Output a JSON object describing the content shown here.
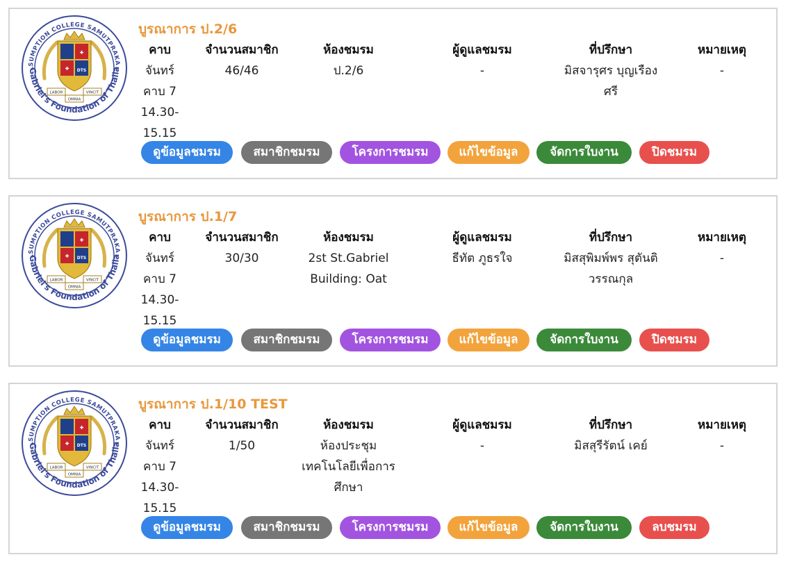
{
  "school": {
    "seal_top_text": "ASSUMPTION COLLEGE SAMUTPRAKARN",
    "seal_bottom_text": "St.Gabriel's Foundation of Thailand",
    "motto_left": "LABOR",
    "motto_right": "VINCIT",
    "motto_bottom": "OMNIA"
  },
  "headers": {
    "period": "คาบ",
    "members": "จำนวนสมาชิก",
    "room": "ห้องชมรม",
    "supervisor": "ผู้ดูแลชมรม",
    "advisor": "ที่ปรึกษา",
    "note": "หมายเหตุ"
  },
  "clubs": [
    {
      "title": "บูรณาการ ป.2/6",
      "period": [
        "จันทร์",
        "คาบ 7",
        "14.30-",
        "15.15"
      ],
      "members": "46/46",
      "room": [
        "ป.2/6"
      ],
      "supervisor": "-",
      "advisor": [
        "มิสจารุศร บุญเรือง",
        "ศรี"
      ],
      "note": "-",
      "buttons": [
        "ดูข้อมูลชมรม",
        "สมาชิกชมรม",
        "โครงการชมรม",
        "แก้ไขข้อมูล",
        "จัดการใบงาน",
        "ปิดชมรม"
      ]
    },
    {
      "title": "บูรณาการ ป.1/7",
      "period": [
        "จันทร์",
        "คาบ 7",
        "14.30-",
        "15.15"
      ],
      "members": "30/30",
      "room": [
        "2st St.Gabriel",
        "Building: Oat"
      ],
      "supervisor": "ธีทัต ภูธรใจ",
      "advisor": [
        "มิสสุพิมพ์พร สุตันติ",
        "วรรณกุล"
      ],
      "note": "-",
      "buttons": [
        "ดูข้อมูลชมรม",
        "สมาชิกชมรม",
        "โครงการชมรม",
        "แก้ไขข้อมูล",
        "จัดการใบงาน",
        "ปิดชมรม"
      ]
    },
    {
      "title": "บูรณาการ ป.1/10 TEST",
      "period": [
        "จันทร์",
        "คาบ 7",
        "14.30-",
        "15.15"
      ],
      "members": "1/50",
      "room": [
        "ห้องประชุม",
        "เทคโนโลยีเพื่อการ",
        "ศึกษา"
      ],
      "supervisor": "-",
      "advisor": [
        "มิสสุรีรัตน์ เคย์"
      ],
      "note": "-",
      "buttons": [
        "ดูข้อมูลชมรม",
        "สมาชิกชมรม",
        "โครงการชมรม",
        "แก้ไขข้อมูล",
        "จัดการใบงาน",
        "ลบชมรม"
      ]
    }
  ],
  "colors": {
    "title": "#e8973c",
    "view": "#3585e6",
    "members": "#767676",
    "projects": "#a254e0",
    "edit": "#f2a33c",
    "worksheets": "#3b8a3a",
    "close": "#e8504d"
  }
}
